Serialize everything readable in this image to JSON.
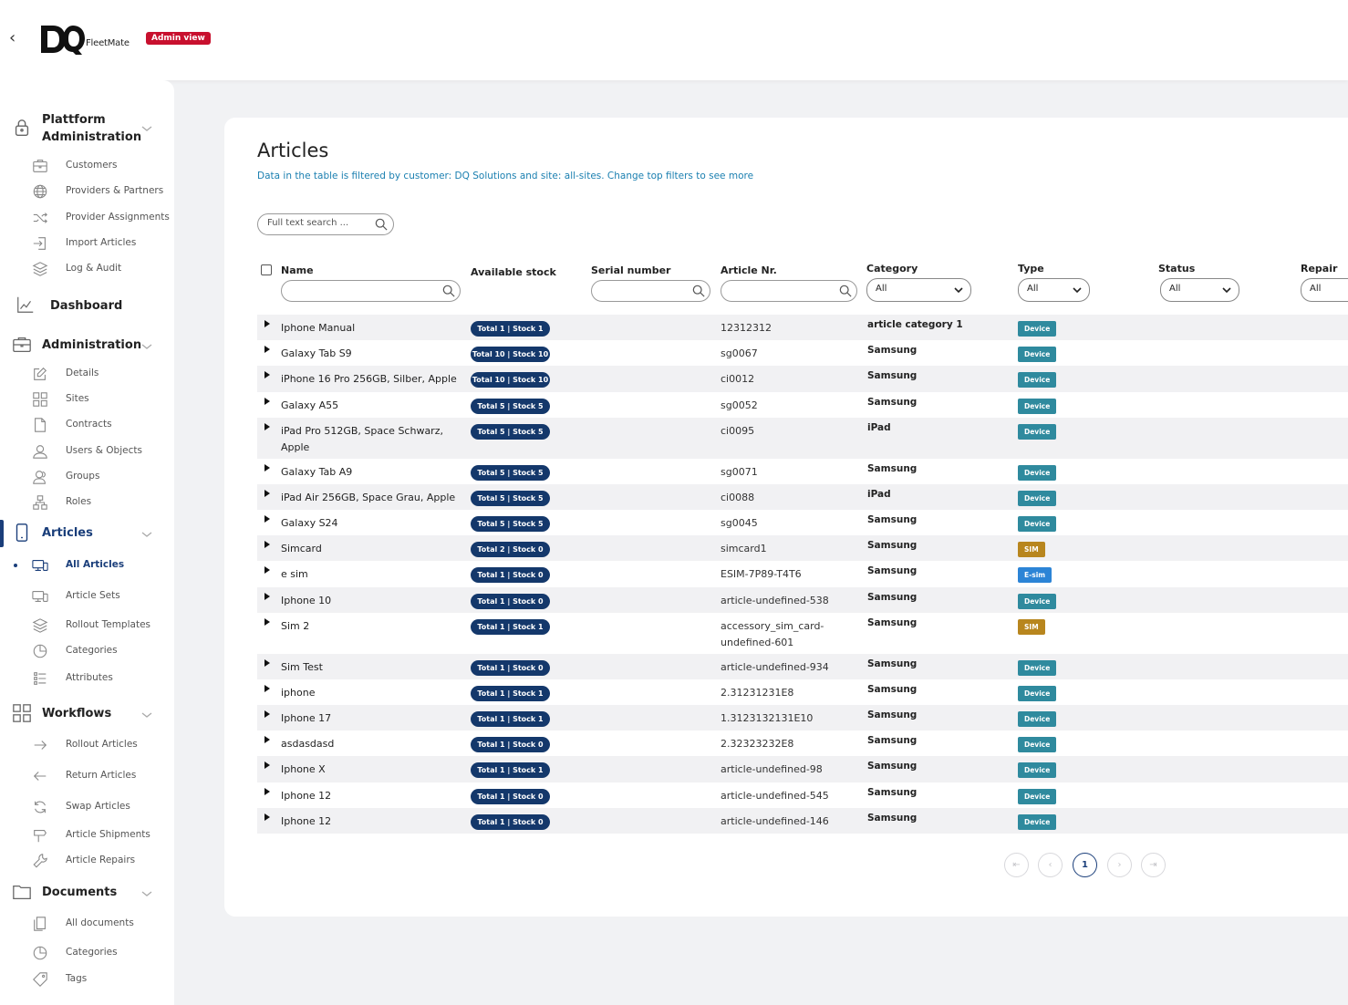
{
  "header": {
    "brand": "FleetMate",
    "badge": "Admin view"
  },
  "sidebar": {
    "platform": {
      "label": "Plattform Administration",
      "items": [
        {
          "label": "Customers"
        },
        {
          "label": "Providers & Partners"
        },
        {
          "label": "Provider Assignments"
        },
        {
          "label": "Import Articles"
        },
        {
          "label": "Log & Audit"
        }
      ]
    },
    "dashboard": {
      "label": "Dashboard"
    },
    "administration": {
      "label": "Administration",
      "items": [
        {
          "label": "Details"
        },
        {
          "label": "Sites"
        },
        {
          "label": "Contracts"
        },
        {
          "label": "Users & Objects"
        },
        {
          "label": "Groups"
        },
        {
          "label": "Roles"
        }
      ]
    },
    "articles": {
      "label": "Articles",
      "items": [
        {
          "label": "All Articles",
          "active": true
        },
        {
          "label": "Article Sets"
        },
        {
          "label": "Rollout Templates"
        },
        {
          "label": "Categories"
        },
        {
          "label": "Attributes"
        }
      ]
    },
    "workflows": {
      "label": "Workflows",
      "items": [
        {
          "label": "Rollout Articles"
        },
        {
          "label": "Return Articles"
        },
        {
          "label": "Swap Articles"
        },
        {
          "label": "Article Shipments"
        },
        {
          "label": "Article Repairs"
        }
      ]
    },
    "documents": {
      "label": "Documents",
      "items": [
        {
          "label": "All documents"
        },
        {
          "label": "Categories"
        },
        {
          "label": "Tags"
        }
      ]
    }
  },
  "main": {
    "title": "Articles",
    "filter_note": "Data in the table is filtered by customer: DQ Solutions and site: all-sites. Change top filters to see more",
    "search_placeholder": "Full text search ...",
    "columns": {
      "name": "Name",
      "stock": "Available stock",
      "serial": "Serial number",
      "article_nr": "Article Nr.",
      "category": "Category",
      "type": "Type",
      "status": "Status",
      "repair": "Repair"
    },
    "filters": {
      "category": "All",
      "type": "All",
      "status": "All",
      "repair": "All"
    },
    "rows": [
      {
        "name": "Iphone Manual",
        "stock": "Total 1 | Stock 1",
        "article_nr": "12312312",
        "category": "article category 1",
        "type": "Device"
      },
      {
        "name": "Galaxy Tab S9",
        "stock": "Total 10 | Stock 10",
        "article_nr": "sg0067",
        "category": "Samsung",
        "type": "Device"
      },
      {
        "name": "iPhone 16 Pro 256GB, Silber, Apple",
        "stock": "Total 10 | Stock 10",
        "article_nr": "ci0012",
        "category": "Samsung",
        "type": "Device"
      },
      {
        "name": "Galaxy A55",
        "stock": "Total 5 | Stock 5",
        "article_nr": "sg0052",
        "category": "Samsung",
        "type": "Device"
      },
      {
        "name": "iPad Pro 512GB, Space Schwarz, Apple",
        "stock": "Total 5 | Stock 5",
        "article_nr": "ci0095",
        "category": "iPad",
        "type": "Device"
      },
      {
        "name": "Galaxy Tab A9",
        "stock": "Total 5 | Stock 5",
        "article_nr": "sg0071",
        "category": "Samsung",
        "type": "Device"
      },
      {
        "name": "iPad Air 256GB, Space Grau, Apple",
        "stock": "Total 5 | Stock 5",
        "article_nr": "ci0088",
        "category": "iPad",
        "type": "Device"
      },
      {
        "name": "Galaxy S24",
        "stock": "Total 5 | Stock 5",
        "article_nr": "sg0045",
        "category": "Samsung",
        "type": "Device"
      },
      {
        "name": "Simcard",
        "stock": "Total 2 | Stock 0",
        "article_nr": "simcard1",
        "category": "Samsung",
        "type": "SIM"
      },
      {
        "name": "e sim",
        "stock": "Total 1 | Stock 0",
        "article_nr": "ESIM-7P89-T4T6",
        "category": "Samsung",
        "type": "E-sim"
      },
      {
        "name": "Iphone 10",
        "stock": "Total 1 | Stock 0",
        "article_nr": "article-undefined-538",
        "category": "Samsung",
        "type": "Device"
      },
      {
        "name": "Sim 2",
        "stock": "Total 1 | Stock 1",
        "article_nr": "accessory_sim_card-undefined-601",
        "category": "Samsung",
        "type": "SIM"
      },
      {
        "name": "Sim Test",
        "stock": "Total 1 | Stock 0",
        "article_nr": "article-undefined-934",
        "category": "Samsung",
        "type": "Device"
      },
      {
        "name": "iphone",
        "stock": "Total 1 | Stock 1",
        "article_nr": "2.31231231E8",
        "category": "Samsung",
        "type": "Device"
      },
      {
        "name": "Iphone 17",
        "stock": "Total 1 | Stock 1",
        "article_nr": "1.3123132131E10",
        "category": "Samsung",
        "type": "Device"
      },
      {
        "name": "asdasdasd",
        "stock": "Total 1 | Stock 0",
        "article_nr": "2.32323232E8",
        "category": "Samsung",
        "type": "Device"
      },
      {
        "name": "Iphone X",
        "stock": "Total 1 | Stock 1",
        "article_nr": "article-undefined-98",
        "category": "Samsung",
        "type": "Device"
      },
      {
        "name": "Iphone 12",
        "stock": "Total 1 | Stock 0",
        "article_nr": "article-undefined-545",
        "category": "Samsung",
        "type": "Device"
      },
      {
        "name": "Iphone 12",
        "stock": "Total 1 | Stock 0",
        "article_nr": "article-undefined-146",
        "category": "Samsung",
        "type": "Device"
      }
    ],
    "type_colors": {
      "Device": "#2f8a9e",
      "SIM": "#b8861e",
      "E-sim": "#2c84d6"
    },
    "pagination": {
      "current": "1"
    }
  }
}
